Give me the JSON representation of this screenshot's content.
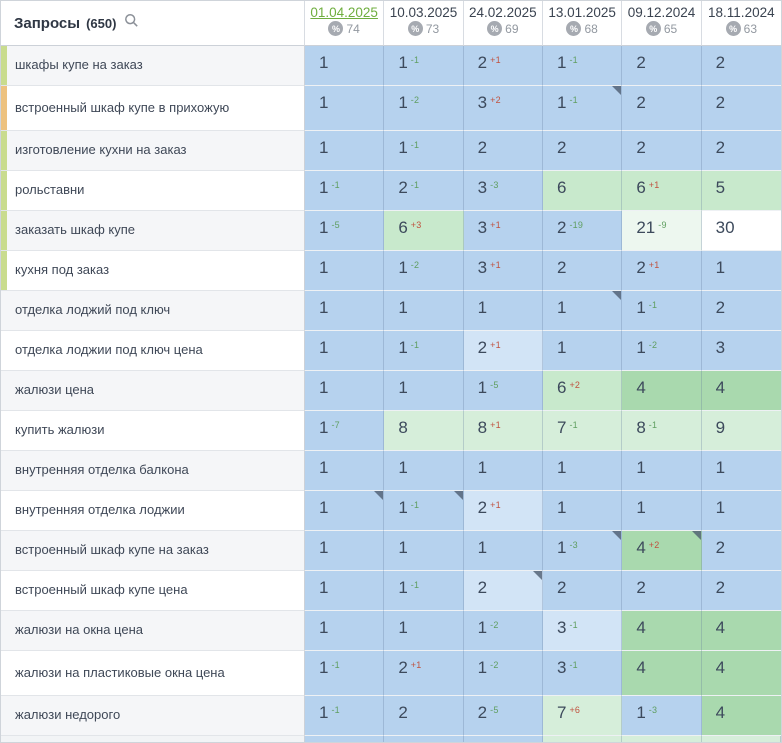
{
  "header": {
    "title": "Запросы",
    "count": "(650)",
    "search_icon": "search-icon"
  },
  "columns": [
    {
      "date": "01.04.2025",
      "active": true,
      "percent": "74"
    },
    {
      "date": "10.03.2025",
      "active": false,
      "percent": "73"
    },
    {
      "date": "24.02.2025",
      "active": false,
      "percent": "69"
    },
    {
      "date": "13.01.2025",
      "active": false,
      "percent": "68"
    },
    {
      "date": "09.12.2024",
      "active": false,
      "percent": "65"
    },
    {
      "date": "18.11.2024",
      "active": false,
      "percent": "63"
    }
  ],
  "palette": {
    "active_date_green": "#6fae3f",
    "delta_improve_green": "#5f9e60",
    "delta_decline_red": "#c0523f",
    "cell_blue": "#b6d2ee",
    "cell_blue_light": "#d2e4f6",
    "cell_green_dark": "#a9d9ae",
    "cell_green_mid": "#c8e9cc",
    "cell_green_light": "#d6eeda",
    "cell_green_pale": "#edf7ef",
    "strip_green": "#c9dc8e",
    "strip_orange": "#edc27f"
  },
  "rows": [
    {
      "keyword": "шкафы купе на заказ",
      "strip": "green",
      "tall": false,
      "cells": [
        {
          "v": "1",
          "d": "",
          "bg": "b",
          "tri": false
        },
        {
          "v": "1",
          "d": "-1",
          "bg": "b",
          "tri": false
        },
        {
          "v": "2",
          "d": "+1",
          "bg": "b",
          "tri": false
        },
        {
          "v": "1",
          "d": "-1",
          "bg": "b",
          "tri": false
        },
        {
          "v": "2",
          "d": "",
          "bg": "b",
          "tri": false
        },
        {
          "v": "2",
          "d": "",
          "bg": "b",
          "tri": false
        }
      ]
    },
    {
      "keyword": "встроенный шкаф купе в прихожую",
      "strip": "orange",
      "tall": true,
      "cells": [
        {
          "v": "1",
          "d": "",
          "bg": "b",
          "tri": false
        },
        {
          "v": "1",
          "d": "-2",
          "bg": "b",
          "tri": false
        },
        {
          "v": "3",
          "d": "+2",
          "bg": "b",
          "tri": false
        },
        {
          "v": "1",
          "d": "-1",
          "bg": "b",
          "tri": true
        },
        {
          "v": "2",
          "d": "",
          "bg": "b",
          "tri": false
        },
        {
          "v": "2",
          "d": "",
          "bg": "b",
          "tri": false
        }
      ]
    },
    {
      "keyword": "изготовление кухни на заказ",
      "strip": "green",
      "tall": false,
      "cells": [
        {
          "v": "1",
          "d": "",
          "bg": "b",
          "tri": false
        },
        {
          "v": "1",
          "d": "-1",
          "bg": "b",
          "tri": false
        },
        {
          "v": "2",
          "d": "",
          "bg": "b",
          "tri": false
        },
        {
          "v": "2",
          "d": "",
          "bg": "b",
          "tri": false
        },
        {
          "v": "2",
          "d": "",
          "bg": "b",
          "tri": false
        },
        {
          "v": "2",
          "d": "",
          "bg": "b",
          "tri": false
        }
      ]
    },
    {
      "keyword": "рольставни",
      "strip": "green",
      "tall": false,
      "cells": [
        {
          "v": "1",
          "d": "-1",
          "bg": "b",
          "tri": false
        },
        {
          "v": "2",
          "d": "-1",
          "bg": "b",
          "tri": false
        },
        {
          "v": "3",
          "d": "-3",
          "bg": "b",
          "tri": false
        },
        {
          "v": "6",
          "d": "",
          "bg": "g6",
          "tri": false
        },
        {
          "v": "6",
          "d": "+1",
          "bg": "g6",
          "tri": false
        },
        {
          "v": "5",
          "d": "",
          "bg": "g6",
          "tri": false
        }
      ]
    },
    {
      "keyword": "заказать шкаф купе",
      "strip": "green",
      "tall": false,
      "cells": [
        {
          "v": "1",
          "d": "-5",
          "bg": "b",
          "tri": false
        },
        {
          "v": "6",
          "d": "+3",
          "bg": "g6",
          "tri": false
        },
        {
          "v": "3",
          "d": "+1",
          "bg": "b",
          "tri": false
        },
        {
          "v": "2",
          "d": "-19",
          "bg": "b",
          "tri": false
        },
        {
          "v": "21",
          "d": "-9",
          "bg": "g21",
          "tri": false
        },
        {
          "v": "30",
          "d": "",
          "bg": "w",
          "tri": false
        }
      ]
    },
    {
      "keyword": "кухня под заказ",
      "strip": "green",
      "tall": false,
      "cells": [
        {
          "v": "1",
          "d": "",
          "bg": "b",
          "tri": false
        },
        {
          "v": "1",
          "d": "-2",
          "bg": "b",
          "tri": false
        },
        {
          "v": "3",
          "d": "+1",
          "bg": "b",
          "tri": false
        },
        {
          "v": "2",
          "d": "",
          "bg": "b",
          "tri": false
        },
        {
          "v": "2",
          "d": "+1",
          "bg": "b",
          "tri": false
        },
        {
          "v": "1",
          "d": "",
          "bg": "b",
          "tri": false
        }
      ]
    },
    {
      "keyword": "отделка лоджий под ключ",
      "strip": null,
      "tall": false,
      "cells": [
        {
          "v": "1",
          "d": "",
          "bg": "b",
          "tri": false
        },
        {
          "v": "1",
          "d": "",
          "bg": "b",
          "tri": false
        },
        {
          "v": "1",
          "d": "",
          "bg": "b",
          "tri": false
        },
        {
          "v": "1",
          "d": "",
          "bg": "b",
          "tri": true
        },
        {
          "v": "1",
          "d": "-1",
          "bg": "b",
          "tri": false
        },
        {
          "v": "2",
          "d": "",
          "bg": "b",
          "tri": false
        }
      ]
    },
    {
      "keyword": "отделка лоджии под ключ цена",
      "strip": null,
      "tall": false,
      "cells": [
        {
          "v": "1",
          "d": "",
          "bg": "b",
          "tri": false
        },
        {
          "v": "1",
          "d": "-1",
          "bg": "b",
          "tri": false
        },
        {
          "v": "2",
          "d": "+1",
          "bg": "lb",
          "tri": false
        },
        {
          "v": "1",
          "d": "",
          "bg": "b",
          "tri": false
        },
        {
          "v": "1",
          "d": "-2",
          "bg": "b",
          "tri": false
        },
        {
          "v": "3",
          "d": "",
          "bg": "b",
          "tri": false
        }
      ]
    },
    {
      "keyword": "жалюзи цена",
      "strip": null,
      "tall": false,
      "cells": [
        {
          "v": "1",
          "d": "",
          "bg": "b",
          "tri": false
        },
        {
          "v": "1",
          "d": "",
          "bg": "b",
          "tri": false
        },
        {
          "v": "1",
          "d": "-5",
          "bg": "b",
          "tri": false
        },
        {
          "v": "6",
          "d": "+2",
          "bg": "g6",
          "tri": false
        },
        {
          "v": "4",
          "d": "",
          "bg": "g4",
          "tri": false
        },
        {
          "v": "4",
          "d": "",
          "bg": "g4",
          "tri": false
        }
      ]
    },
    {
      "keyword": "купить жалюзи",
      "strip": null,
      "tall": false,
      "cells": [
        {
          "v": "1",
          "d": "-7",
          "bg": "b",
          "tri": false
        },
        {
          "v": "8",
          "d": "",
          "bg": "g8",
          "tri": false
        },
        {
          "v": "8",
          "d": "+1",
          "bg": "g8",
          "tri": false
        },
        {
          "v": "7",
          "d": "-1",
          "bg": "g8",
          "tri": false
        },
        {
          "v": "8",
          "d": "-1",
          "bg": "g8",
          "tri": false
        },
        {
          "v": "9",
          "d": "",
          "bg": "g8",
          "tri": false
        }
      ]
    },
    {
      "keyword": "внутренняя отделка балкона",
      "strip": null,
      "tall": false,
      "cells": [
        {
          "v": "1",
          "d": "",
          "bg": "b",
          "tri": false
        },
        {
          "v": "1",
          "d": "",
          "bg": "b",
          "tri": false
        },
        {
          "v": "1",
          "d": "",
          "bg": "b",
          "tri": false
        },
        {
          "v": "1",
          "d": "",
          "bg": "b",
          "tri": false
        },
        {
          "v": "1",
          "d": "",
          "bg": "b",
          "tri": false
        },
        {
          "v": "1",
          "d": "",
          "bg": "b",
          "tri": false
        }
      ]
    },
    {
      "keyword": "внутренняя отделка лоджии",
      "strip": null,
      "tall": false,
      "cells": [
        {
          "v": "1",
          "d": "",
          "bg": "b",
          "tri": true
        },
        {
          "v": "1",
          "d": "-1",
          "bg": "b",
          "tri": true
        },
        {
          "v": "2",
          "d": "+1",
          "bg": "lb",
          "tri": false
        },
        {
          "v": "1",
          "d": "",
          "bg": "b",
          "tri": false
        },
        {
          "v": "1",
          "d": "",
          "bg": "b",
          "tri": false
        },
        {
          "v": "1",
          "d": "",
          "bg": "b",
          "tri": false
        }
      ]
    },
    {
      "keyword": "встроенный шкаф купе на заказ",
      "strip": null,
      "tall": false,
      "cells": [
        {
          "v": "1",
          "d": "",
          "bg": "b",
          "tri": false
        },
        {
          "v": "1",
          "d": "",
          "bg": "b",
          "tri": false
        },
        {
          "v": "1",
          "d": "",
          "bg": "b",
          "tri": false
        },
        {
          "v": "1",
          "d": "-3",
          "bg": "b",
          "tri": true
        },
        {
          "v": "4",
          "d": "+2",
          "bg": "g4",
          "tri": true
        },
        {
          "v": "2",
          "d": "",
          "bg": "b",
          "tri": false
        }
      ]
    },
    {
      "keyword": "встроенный шкаф купе цена",
      "strip": null,
      "tall": false,
      "cells": [
        {
          "v": "1",
          "d": "",
          "bg": "b",
          "tri": false
        },
        {
          "v": "1",
          "d": "-1",
          "bg": "b",
          "tri": false
        },
        {
          "v": "2",
          "d": "",
          "bg": "lb",
          "tri": true
        },
        {
          "v": "2",
          "d": "",
          "bg": "b",
          "tri": false
        },
        {
          "v": "2",
          "d": "",
          "bg": "b",
          "tri": false
        },
        {
          "v": "2",
          "d": "",
          "bg": "b",
          "tri": false
        }
      ]
    },
    {
      "keyword": "жалюзи на окна цена",
      "strip": null,
      "tall": false,
      "cells": [
        {
          "v": "1",
          "d": "",
          "bg": "b",
          "tri": false
        },
        {
          "v": "1",
          "d": "",
          "bg": "b",
          "tri": false
        },
        {
          "v": "1",
          "d": "-2",
          "bg": "b",
          "tri": false
        },
        {
          "v": "3",
          "d": "-1",
          "bg": "lb",
          "tri": false
        },
        {
          "v": "4",
          "d": "",
          "bg": "g4",
          "tri": false
        },
        {
          "v": "4",
          "d": "",
          "bg": "g4",
          "tri": false
        }
      ]
    },
    {
      "keyword": "жалюзи на пластиковые окна цена",
      "strip": null,
      "tall": true,
      "cells": [
        {
          "v": "1",
          "d": "-1",
          "bg": "b",
          "tri": false
        },
        {
          "v": "2",
          "d": "+1",
          "bg": "b",
          "tri": false
        },
        {
          "v": "1",
          "d": "-2",
          "bg": "b",
          "tri": false
        },
        {
          "v": "3",
          "d": "-1",
          "bg": "b",
          "tri": false
        },
        {
          "v": "4",
          "d": "",
          "bg": "g4",
          "tri": false
        },
        {
          "v": "4",
          "d": "",
          "bg": "g4",
          "tri": false
        }
      ]
    },
    {
      "keyword": "жалюзи недорого",
      "strip": null,
      "tall": false,
      "cells": [
        {
          "v": "1",
          "d": "-1",
          "bg": "b",
          "tri": false
        },
        {
          "v": "2",
          "d": "",
          "bg": "b",
          "tri": false
        },
        {
          "v": "2",
          "d": "-5",
          "bg": "b",
          "tri": false
        },
        {
          "v": "7",
          "d": "+6",
          "bg": "g8",
          "tri": false
        },
        {
          "v": "1",
          "d": "-3",
          "bg": "b",
          "tri": false
        },
        {
          "v": "4",
          "d": "",
          "bg": "g4",
          "tri": false
        }
      ]
    }
  ],
  "next_row_sliver": [
    "b",
    "b",
    "b",
    "g8",
    "g8",
    "g8"
  ]
}
